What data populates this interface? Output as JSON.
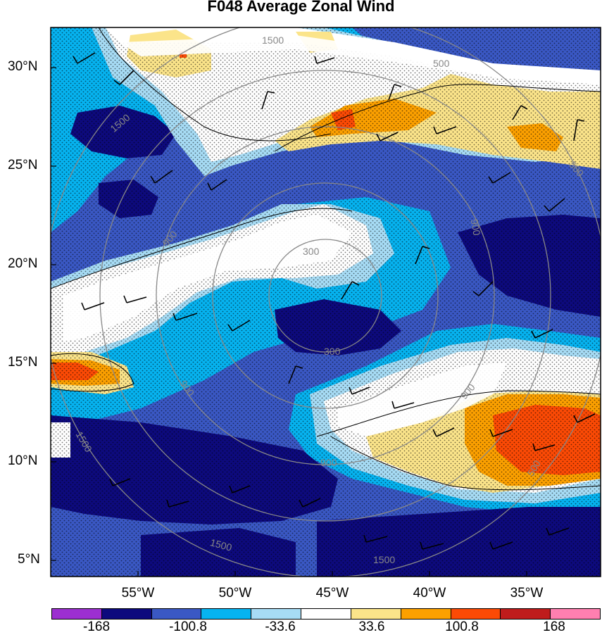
{
  "title": "F048 Average Zonal Wind",
  "lat_labels": [
    "30°N",
    "25°N",
    "20°N",
    "15°N",
    "10°N",
    "5°N"
  ],
  "lon_labels": [
    "55°W",
    "50°W",
    "45°W",
    "40°W",
    "35°W"
  ],
  "colorbar": {
    "colors": [
      "#9c2fd1",
      "#0d0a7d",
      "#3a58c4",
      "#06b3f0",
      "#a7dcf5",
      "#ffffff",
      "#fbe48a",
      "#fca000",
      "#fc4a05",
      "#bf1c1c",
      "#ff7fb0"
    ],
    "labels": [
      "-168",
      "-100.8",
      "-33.6",
      "33.6",
      "100.8",
      "168"
    ]
  },
  "contour_labels": [
    "1500",
    "1500",
    "900",
    "300",
    "300",
    "900",
    "900",
    "900",
    "1500",
    "500",
    "500",
    "900",
    "1500",
    "500",
    "1500"
  ],
  "fill_colors": {
    "deep_blue": "#0d0a7d",
    "mid_blue": "#3a58c4",
    "light_blue": "#06b3f0",
    "pale_blue": "#a7dcf5",
    "white": "#ffffff",
    "yellow": "#fbe48a",
    "orange": "#fca000",
    "red": "#fc4a05"
  }
}
